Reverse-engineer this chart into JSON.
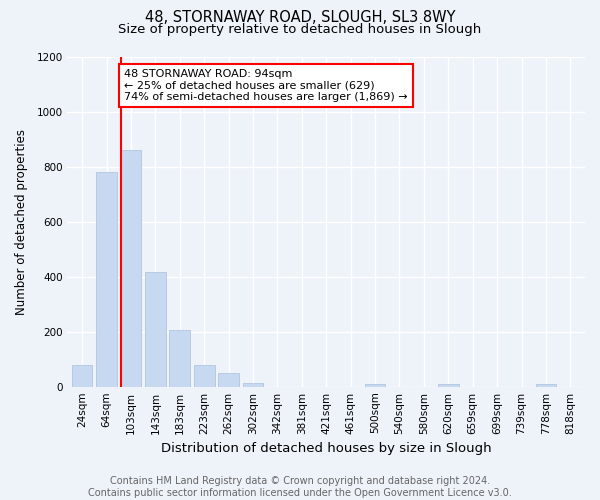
{
  "title1": "48, STORNAWAY ROAD, SLOUGH, SL3 8WY",
  "title2": "Size of property relative to detached houses in Slough",
  "xlabel": "Distribution of detached houses by size in Slough",
  "ylabel": "Number of detached properties",
  "categories": [
    "24sqm",
    "64sqm",
    "103sqm",
    "143sqm",
    "183sqm",
    "223sqm",
    "262sqm",
    "302sqm",
    "342sqm",
    "381sqm",
    "421sqm",
    "461sqm",
    "500sqm",
    "540sqm",
    "580sqm",
    "620sqm",
    "659sqm",
    "699sqm",
    "739sqm",
    "778sqm",
    "818sqm"
  ],
  "values": [
    80,
    780,
    860,
    415,
    205,
    80,
    50,
    15,
    0,
    0,
    0,
    0,
    10,
    0,
    0,
    10,
    0,
    0,
    0,
    10,
    0
  ],
  "bar_color": "#c6d9f0",
  "bar_edgecolor": "#aac0dd",
  "annotation_text": "48 STORNAWAY ROAD: 94sqm\n← 25% of detached houses are smaller (629)\n74% of semi-detached houses are larger (1,869) →",
  "annotation_box_color": "white",
  "annotation_box_edgecolor": "red",
  "vline_color": "red",
  "vline_x_index": 2,
  "ylim": [
    0,
    1200
  ],
  "yticks": [
    0,
    200,
    400,
    600,
    800,
    1000,
    1200
  ],
  "footer_text": "Contains HM Land Registry data © Crown copyright and database right 2024.\nContains public sector information licensed under the Open Government Licence v3.0.",
  "bg_color": "#eef2f9",
  "plot_bg_color": "#eef2f9",
  "grid_color": "white",
  "title1_fontsize": 10.5,
  "title2_fontsize": 9.5,
  "xlabel_fontsize": 9.5,
  "ylabel_fontsize": 8.5,
  "tick_fontsize": 7.5,
  "footer_fontsize": 7.0,
  "annot_fontsize": 8.0
}
